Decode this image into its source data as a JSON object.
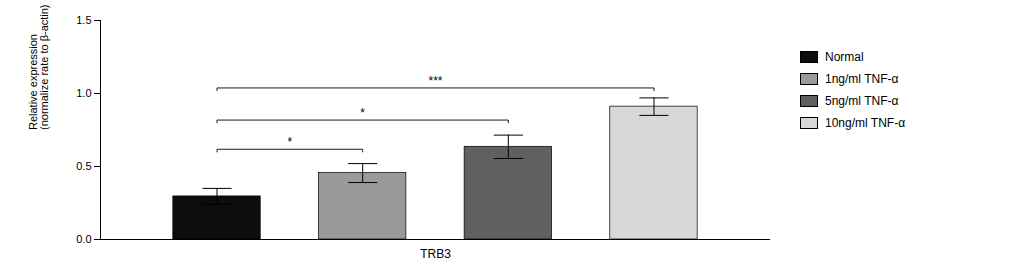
{
  "chart_data": {
    "type": "bar",
    "categories": [
      "Normal",
      "1ng/ml TNF-α",
      "5ng/ml TNF-α",
      "10ng/ml TNF-α"
    ],
    "values": [
      0.295,
      0.455,
      0.635,
      0.91
    ],
    "errors": [
      0.055,
      0.065,
      0.08,
      0.06
    ],
    "colors": [
      "#0d0d0d",
      "#9a9a9a",
      "#606060",
      "#d8d8d8"
    ],
    "xlabel": "TRB3",
    "ylabel": "Relative expression\n(normalize rate to β-actin)",
    "ylim": [
      0,
      1.5
    ],
    "yticks": [
      {
        "value": 0,
        "label": "0.0"
      },
      {
        "value": 0.5,
        "label": "0.5"
      },
      {
        "value": 1,
        "label": "1.0"
      },
      {
        "value": 1.5,
        "label": "1.5"
      }
    ],
    "tick_labels": "y",
    "legend": "right",
    "annotations": [
      {
        "x1": "Normal",
        "x2": "1ng/ml TNF-α",
        "y": 0.6,
        "label": "*"
      },
      {
        "x1": "Normal",
        "x2": "5ng/ml TNF-α",
        "y": 0.8,
        "label": "*"
      },
      {
        "x1": "Normal",
        "x2": "10ng/ml TNF-α",
        "y": 1.02,
        "label": "***"
      }
    ]
  }
}
